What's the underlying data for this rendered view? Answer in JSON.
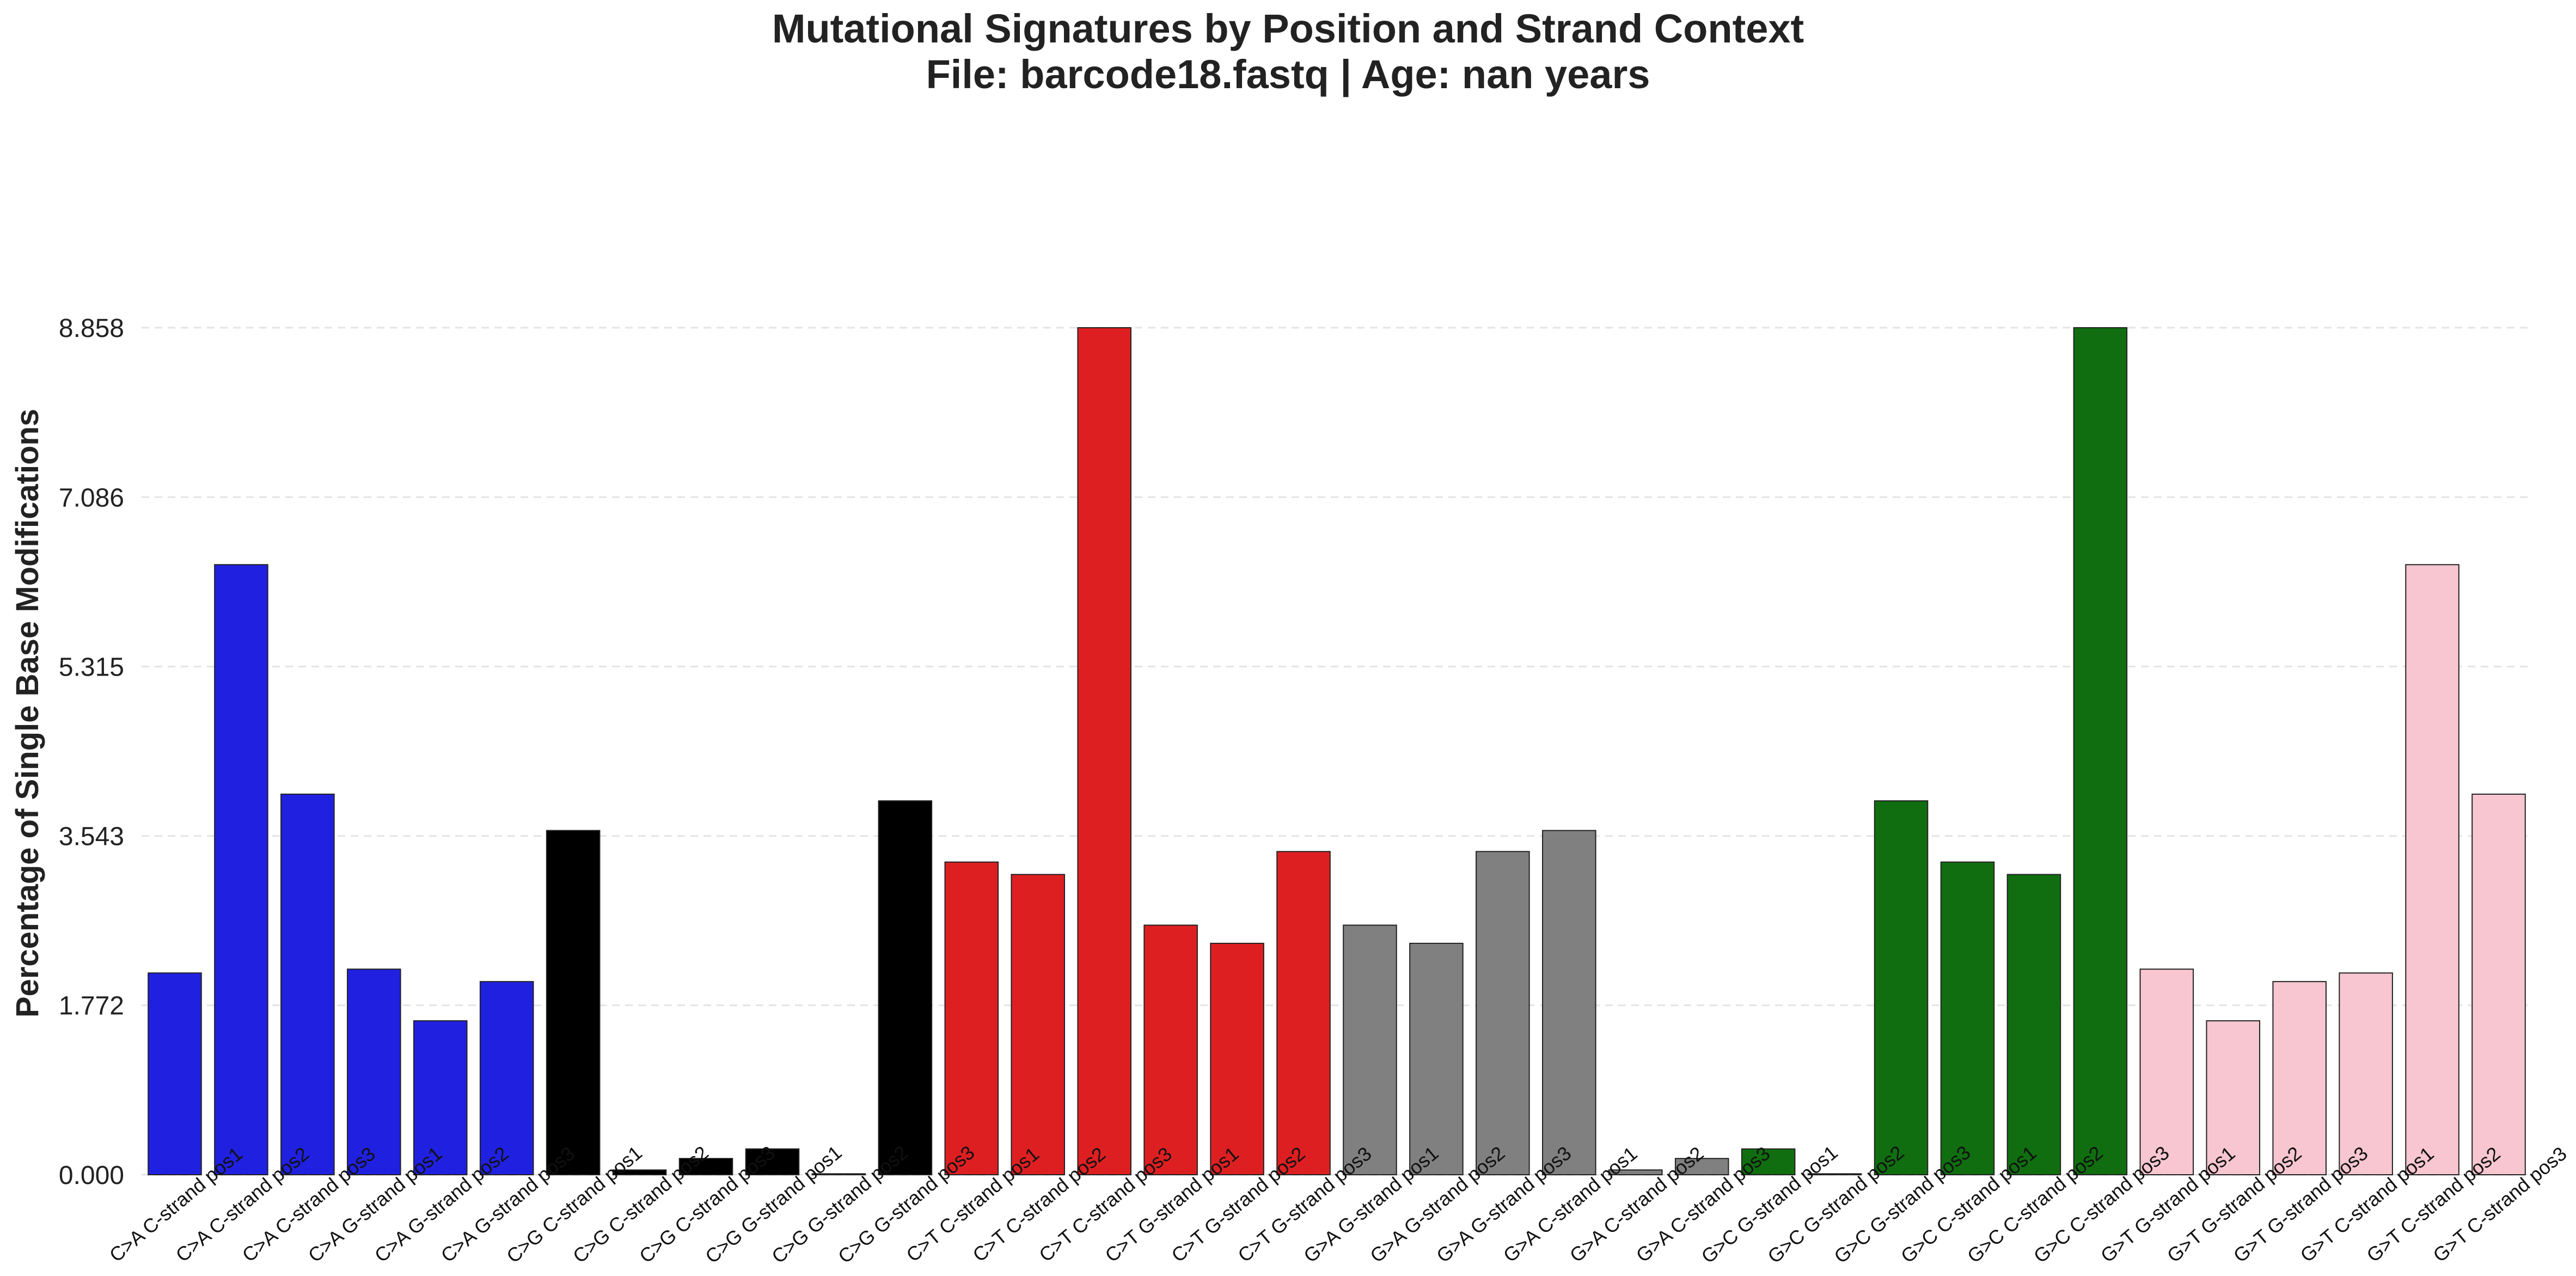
{
  "chart_data": {
    "type": "bar",
    "title_line1": "Mutational Signatures by Position and Strand Context",
    "title_line2": "File: barcode18.fastq | Age: nan years",
    "xlabel": "",
    "ylabel": "Percentage of Single Base Modifications",
    "ylim": [
      0,
      8.858
    ],
    "yticks": [
      "0.000",
      "1.772",
      "3.543",
      "5.315",
      "7.086",
      "8.858"
    ],
    "grid": "horizontal dashed",
    "categories": [
      "C>A C-strand pos1",
      "C>A C-strand pos2",
      "C>A C-strand pos3",
      "C>A G-strand pos1",
      "C>A G-strand pos2",
      "C>A G-strand pos3",
      "C>G C-strand pos1",
      "C>G C-strand pos2",
      "C>G C-strand pos3",
      "C>G G-strand pos1",
      "C>G G-strand pos2",
      "C>G G-strand pos3",
      "C>T C-strand pos1",
      "C>T C-strand pos2",
      "C>T C-strand pos3",
      "C>T G-strand pos1",
      "C>T G-strand pos2",
      "C>T G-strand pos3",
      "G>A G-strand pos1",
      "G>A G-strand pos2",
      "G>A G-strand pos3",
      "G>A C-strand pos1",
      "G>A C-strand pos2",
      "G>A C-strand pos3",
      "G>C G-strand pos1",
      "G>C G-strand pos2",
      "G>C G-strand pos3",
      "G>C C-strand pos1",
      "G>C C-strand pos2",
      "G>C C-strand pos3",
      "G>T G-strand pos1",
      "G>T G-strand pos2",
      "G>T G-strand pos3",
      "G>T C-strand pos1",
      "G>T C-strand pos2",
      "G>T C-strand pos3"
    ],
    "values": [
      2.11,
      6.38,
      3.98,
      2.15,
      1.61,
      2.02,
      3.6,
      0.05,
      0.17,
      0.27,
      0.01,
      3.91,
      3.27,
      3.14,
      8.858,
      2.61,
      2.42,
      3.38,
      2.61,
      2.42,
      3.38,
      3.6,
      0.05,
      0.17,
      0.27,
      0.01,
      3.91,
      3.27,
      3.14,
      8.858,
      2.15,
      1.61,
      2.02,
      2.11,
      6.38,
      3.98
    ],
    "colors": [
      "#2020e0",
      "#2020e0",
      "#2020e0",
      "#2020e0",
      "#2020e0",
      "#2020e0",
      "#000000",
      "#000000",
      "#000000",
      "#000000",
      "#000000",
      "#000000",
      "#de1f22",
      "#de1f22",
      "#de1f22",
      "#de1f22",
      "#de1f22",
      "#de1f22",
      "#808080",
      "#808080",
      "#808080",
      "#808080",
      "#808080",
      "#808080",
      "#106e10",
      "#106e10",
      "#106e10",
      "#106e10",
      "#106e10",
      "#106e10",
      "#f7c6d0",
      "#f7c6d0",
      "#f7c6d0",
      "#f7c6d0",
      "#f7c6d0",
      "#f7c6d0"
    ]
  }
}
